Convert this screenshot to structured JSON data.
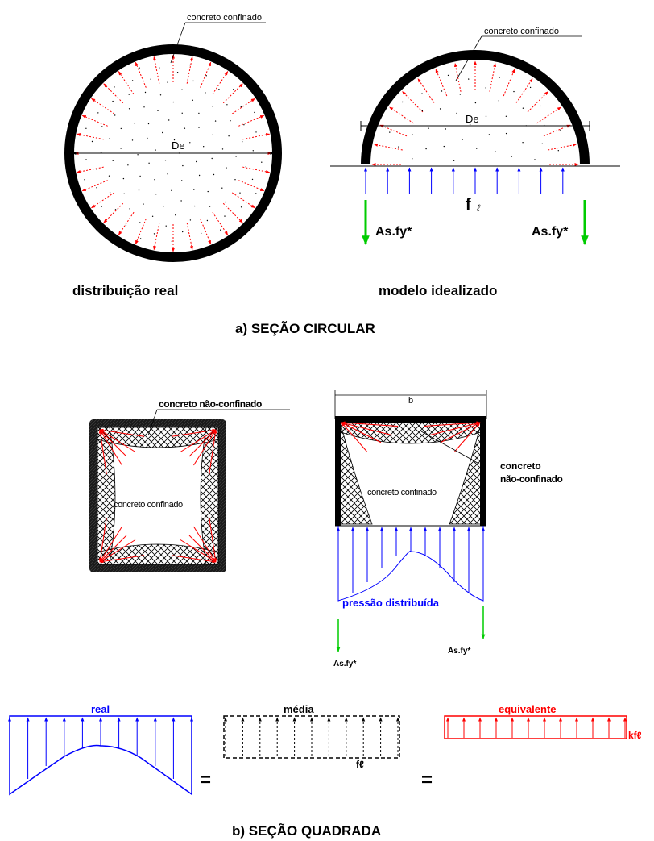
{
  "section_a": {
    "circle_real": {
      "confined_label": "concreto confinado",
      "diameter_label": "De",
      "caption": "distribuição real"
    },
    "half_circle": {
      "confined_label": "concreto confinado",
      "diameter_label": "De",
      "pressure_label": "f",
      "pressure_sub": "ℓ",
      "left_force": "As.fy*",
      "right_force": "As.fy*",
      "caption": "modelo idealizado"
    },
    "title": "a)    SEÇÃO CIRCULAR"
  },
  "section_b": {
    "square_real": {
      "unconfined_label": "concreto não-confinado",
      "confined_label": "concreto confinado"
    },
    "square_model": {
      "width_label": "b",
      "unconfined_label_1": "concreto",
      "unconfined_label_2": "não-confinado",
      "confined_label": "concreto confinado",
      "distributed_label": "pressão distribuída",
      "left_force": "As.fy*",
      "right_force": "As.fy*"
    },
    "equivalence": {
      "real_label": "real",
      "mean_label": "média",
      "mean_pressure": "fℓ",
      "equivalent_label": "equivalente",
      "equivalent_pressure": "kfℓ",
      "equals_1": "=",
      "equals_2": "="
    },
    "title": "b) SEÇÃO QUADRADA"
  },
  "colors": {
    "stress_arrow": "#ff0000",
    "pressure_arrow": "#0000ff",
    "steel_force": "#00cc00",
    "jacket": "#000000"
  }
}
